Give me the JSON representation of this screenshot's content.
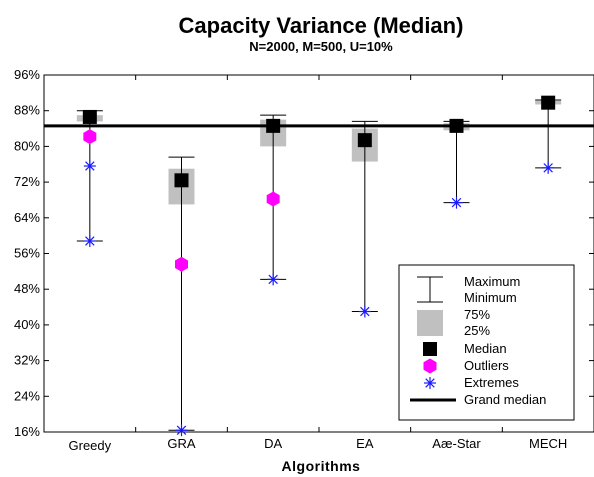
{
  "chart_data": {
    "type": "boxplot",
    "title": "Capacity Variance (Median)",
    "subtitle": "N=2000, M=500, U=10%",
    "xlabel": "Algorithms",
    "ylabel": "",
    "ylim": [
      16,
      96
    ],
    "yticks": [
      "16%",
      "24%",
      "32%",
      "40%",
      "48%",
      "56%",
      "64%",
      "72%",
      "80%",
      "88%",
      "96%"
    ],
    "categories": [
      "Greedy",
      "GRA",
      "DA",
      "EA",
      "Aæ-Star",
      "MECH"
    ],
    "grand_median": 84.6,
    "series": [
      {
        "category": "Greedy",
        "max": 88.0,
        "min": 58.8,
        "q3": 87.0,
        "q1": 85.6,
        "median": 86.6,
        "outliers": [
          82.2
        ],
        "extremes": [
          75.6,
          58.8
        ]
      },
      {
        "category": "GRA",
        "max": 77.6,
        "min": 16.4,
        "q3": 75.0,
        "q1": 67.0,
        "median": 72.4,
        "outliers": [
          53.6
        ],
        "extremes": [
          16.4
        ]
      },
      {
        "category": "DA",
        "max": 87.0,
        "min": 50.2,
        "q3": 86.0,
        "q1": 80.0,
        "median": 84.6,
        "outliers": [
          68.2
        ],
        "extremes": [
          50.2
        ]
      },
      {
        "category": "EA",
        "max": 85.6,
        "min": 43.0,
        "q3": 84.0,
        "q1": 76.6,
        "median": 81.4,
        "outliers": [],
        "extremes": [
          43.0
        ]
      },
      {
        "category": "Aæ-Star",
        "max": 85.6,
        "min": 67.4,
        "q3": 85.2,
        "q1": 83.6,
        "median": 84.6,
        "outliers": [],
        "extremes": [
          67.4
        ]
      },
      {
        "category": "MECH",
        "max": 90.4,
        "min": 75.2,
        "q3": 90.2,
        "q1": 89.4,
        "median": 89.8,
        "outliers": [],
        "extremes": [
          75.2
        ]
      }
    ],
    "legend": {
      "placement": "bottom-right",
      "entries": [
        "Maximum",
        "Minimum",
        "75%",
        "25%",
        "Median",
        "Outliers",
        "Extremes",
        "Grand median"
      ]
    },
    "colors": {
      "box": "#c0c0c0",
      "median": "#000000",
      "outlier": "#ff00ff",
      "extreme": "#1a1aff",
      "line": "#000000"
    }
  }
}
